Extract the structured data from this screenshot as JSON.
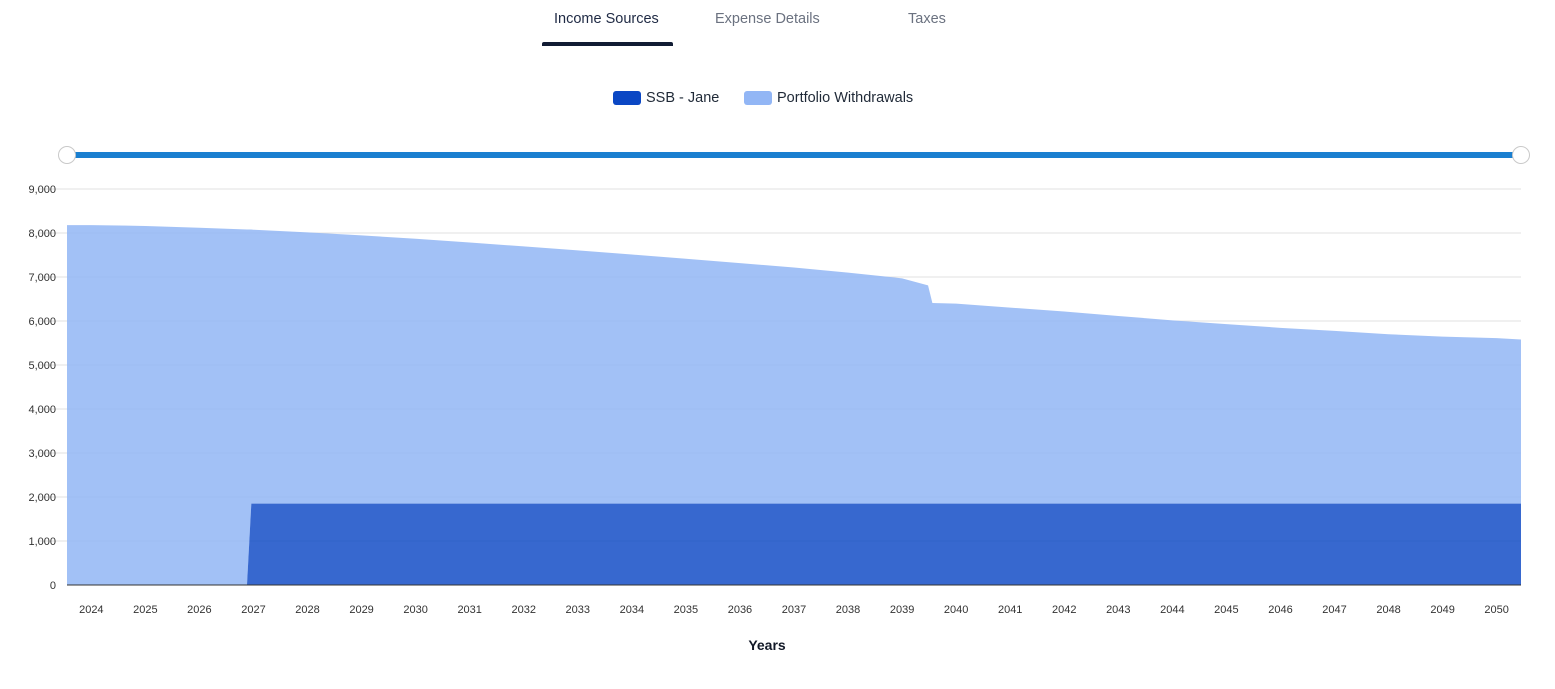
{
  "tabs": [
    {
      "label": "Income Sources",
      "active": true
    },
    {
      "label": "Expense Details",
      "active": false
    },
    {
      "label": "Taxes",
      "active": false
    }
  ],
  "colors": {
    "ssb": "#0b47c4",
    "portfolio": "#92b6f5",
    "slider": "#1a7fd0",
    "active_tab": "#111c33"
  },
  "chart_data": {
    "type": "area",
    "stacked": true,
    "xlabel": "Years",
    "ylabel": "",
    "ylim": [
      0,
      9000
    ],
    "yticks": [
      0,
      1000,
      2000,
      3000,
      4000,
      5000,
      6000,
      7000,
      8000,
      9000
    ],
    "ytick_labels": [
      "0",
      "1,000",
      "2,000",
      "3,000",
      "4,000",
      "5,000",
      "6,000",
      "7,000",
      "8,000",
      "9,000"
    ],
    "xlim": [
      2023.55,
      2050.45
    ],
    "categories": [
      "2024",
      "2025",
      "2026",
      "2027",
      "2028",
      "2029",
      "2030",
      "2031",
      "2032",
      "2033",
      "2034",
      "2035",
      "2036",
      "2037",
      "2038",
      "2039",
      "2040",
      "2041",
      "2042",
      "2043",
      "2044",
      "2045",
      "2046",
      "2047",
      "2048",
      "2049",
      "2050"
    ],
    "legend_position": "top-center",
    "grid": true,
    "series": [
      {
        "name": "SSB - Jane",
        "color_key": "ssb",
        "points": [
          [
            2023.55,
            0
          ],
          [
            2026.88,
            0
          ],
          [
            2026.96,
            1850
          ],
          [
            2050.45,
            1850
          ]
        ]
      },
      {
        "name": "Portfolio Withdrawals",
        "color_key": "portfolio",
        "points": [
          [
            2023.55,
            8180
          ],
          [
            2024.0,
            8180
          ],
          [
            2025.0,
            8160
          ],
          [
            2026.0,
            8120
          ],
          [
            2026.88,
            8080
          ],
          [
            2026.96,
            6230
          ],
          [
            2027.0,
            6225
          ],
          [
            2028.0,
            6165
          ],
          [
            2029.0,
            6095
          ],
          [
            2030.0,
            6020
          ],
          [
            2031.0,
            5935
          ],
          [
            2032.0,
            5845
          ],
          [
            2033.0,
            5755
          ],
          [
            2034.0,
            5660
          ],
          [
            2035.0,
            5565
          ],
          [
            2036.0,
            5465
          ],
          [
            2037.0,
            5365
          ],
          [
            2038.0,
            5250
          ],
          [
            2039.0,
            5120
          ],
          [
            2039.48,
            4960
          ],
          [
            2039.56,
            4560
          ],
          [
            2040.0,
            4545
          ],
          [
            2041.0,
            4455
          ],
          [
            2042.0,
            4365
          ],
          [
            2043.0,
            4265
          ],
          [
            2044.0,
            4165
          ],
          [
            2045.0,
            4080
          ],
          [
            2046.0,
            3995
          ],
          [
            2047.0,
            3925
          ],
          [
            2048.0,
            3850
          ],
          [
            2049.0,
            3795
          ],
          [
            2050.0,
            3760
          ],
          [
            2050.45,
            3730
          ]
        ]
      }
    ]
  }
}
